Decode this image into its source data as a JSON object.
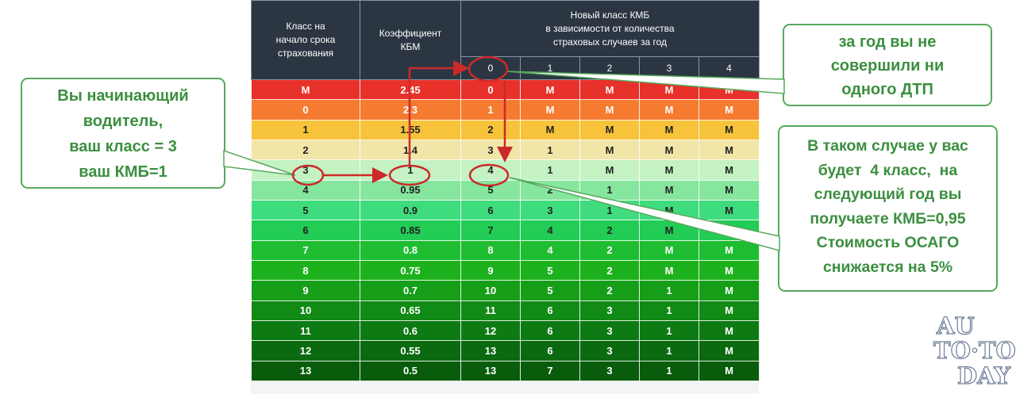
{
  "table": {
    "header": {
      "col_class": "Класс на\nначало срока\nстрахования",
      "col_kbm": "Коэффициент\nКБМ",
      "col_new": "Новый класс КМБ\nв зависимости от количества\nстраховых случаев за год",
      "sub": [
        "0",
        "1",
        "2",
        "3",
        "4"
      ]
    },
    "rows": [
      {
        "cells": [
          "M",
          "2.45",
          "0",
          "M",
          "M",
          "M",
          "M"
        ],
        "color": "#e8312a",
        "dark": false
      },
      {
        "cells": [
          "0",
          "2.3",
          "1",
          "M",
          "M",
          "M",
          "M"
        ],
        "color": "#f57b30",
        "dark": false
      },
      {
        "cells": [
          "1",
          "1.55",
          "2",
          "M",
          "M",
          "M",
          "M"
        ],
        "color": "#f7c33a",
        "dark": true
      },
      {
        "cells": [
          "2",
          "1.4",
          "3",
          "1",
          "M",
          "M",
          "M"
        ],
        "color": "#f2e5a8",
        "dark": true
      },
      {
        "cells": [
          "3",
          "1",
          "4",
          "1",
          "M",
          "M",
          "M"
        ],
        "color": "#c4f2c3",
        "dark": true
      },
      {
        "cells": [
          "4",
          "0.95",
          "5",
          "2",
          "1",
          "M",
          "M"
        ],
        "color": "#86e69e",
        "dark": true
      },
      {
        "cells": [
          "5",
          "0.9",
          "6",
          "3",
          "1",
          "M",
          "M"
        ],
        "color": "#3fdc7e",
        "dark": true
      },
      {
        "cells": [
          "6",
          "0.85",
          "7",
          "4",
          "2",
          "M",
          "M"
        ],
        "color": "#22cc55",
        "dark": true
      },
      {
        "cells": [
          "7",
          "0.8",
          "8",
          "4",
          "2",
          "M",
          "M"
        ],
        "color": "#1fbd31",
        "dark": false
      },
      {
        "cells": [
          "8",
          "0.75",
          "9",
          "5",
          "2",
          "M",
          "M"
        ],
        "color": "#1db21d",
        "dark": false
      },
      {
        "cells": [
          "9",
          "0.7",
          "10",
          "5",
          "2",
          "1",
          "M"
        ],
        "color": "#169e19",
        "dark": false
      },
      {
        "cells": [
          "10",
          "0.65",
          "11",
          "6",
          "3",
          "1",
          "M"
        ],
        "color": "#128a16",
        "dark": false
      },
      {
        "cells": [
          "11",
          "0.6",
          "12",
          "6",
          "3",
          "1",
          "M"
        ],
        "color": "#0e7a13",
        "dark": false
      },
      {
        "cells": [
          "12",
          "0.55",
          "13",
          "6",
          "3",
          "1",
          "M"
        ],
        "color": "#0b6a10",
        "dark": false
      },
      {
        "cells": [
          "13",
          "0.5",
          "13",
          "7",
          "3",
          "1",
          "M"
        ],
        "color": "#085c0c",
        "dark": false
      }
    ]
  },
  "callouts": {
    "left": [
      "Вы начинающий",
      "водитель,",
      "ваш класс = 3",
      "ваш КМБ=1"
    ],
    "top_right": [
      "за год вы не",
      "совершили ни",
      "одного ДТП"
    ],
    "mid_right": [
      "В таком случае у вас",
      "будет  4 класс,  на",
      "следующий год вы",
      "получаете КМБ=0,95",
      "Стоимость ОСАГО",
      "снижается на 5%"
    ]
  },
  "watermark": {
    "line1": "AU",
    "line2": "TO·TO",
    "line3": "DAY"
  },
  "colors": {
    "header_bg": "#2b3642",
    "callout_green": "#3b8f3f",
    "marker_red": "#cc2a2a"
  }
}
